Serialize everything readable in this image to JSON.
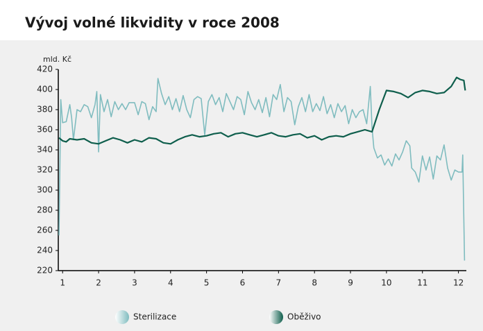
{
  "chart_data": {
    "type": "line",
    "title": "Vývoj volné likvidity v roce 2008",
    "y_label": "mld. Kč",
    "xlim": [
      0.88,
      12.22
    ],
    "xticks": [
      1,
      2,
      3,
      4,
      5,
      6,
      7,
      8,
      9,
      10,
      11,
      12
    ],
    "ylim": [
      220,
      420
    ],
    "yticks": [
      220,
      240,
      260,
      280,
      300,
      320,
      340,
      360,
      380,
      400,
      420
    ],
    "legend": "bottom",
    "series": [
      {
        "name": "Sterilizace",
        "color": "#7fbcbf",
        "x": [
          0.9,
          0.95,
          1.0,
          1.1,
          1.2,
          1.25,
          1.3,
          1.4,
          1.5,
          1.6,
          1.7,
          1.8,
          1.9,
          1.95,
          2.0,
          2.05,
          2.15,
          2.25,
          2.35,
          2.45,
          2.55,
          2.65,
          2.75,
          2.85,
          3.0,
          3.1,
          3.2,
          3.3,
          3.4,
          3.5,
          3.6,
          3.65,
          3.75,
          3.85,
          3.95,
          4.05,
          4.15,
          4.25,
          4.35,
          4.45,
          4.55,
          4.65,
          4.75,
          4.85,
          4.95,
          5.05,
          5.15,
          5.25,
          5.35,
          5.45,
          5.55,
          5.65,
          5.75,
          5.85,
          5.95,
          6.05,
          6.15,
          6.25,
          6.35,
          6.45,
          6.55,
          6.65,
          6.75,
          6.85,
          6.95,
          7.05,
          7.15,
          7.25,
          7.35,
          7.45,
          7.55,
          7.65,
          7.75,
          7.85,
          7.95,
          8.05,
          8.15,
          8.25,
          8.35,
          8.45,
          8.55,
          8.65,
          8.75,
          8.85,
          8.95,
          9.05,
          9.15,
          9.25,
          9.35,
          9.45,
          9.55,
          9.6,
          9.65,
          9.75,
          9.85,
          9.95,
          10.05,
          10.15,
          10.25,
          10.35,
          10.45,
          10.55,
          10.65,
          10.7,
          10.8,
          10.9,
          11.0,
          11.1,
          11.2,
          11.3,
          11.4,
          11.5,
          11.6,
          11.7,
          11.8,
          11.9,
          12.0,
          12.1,
          12.12,
          12.17
        ],
        "values": [
          255,
          390,
          367,
          368,
          385,
          372,
          350,
          380,
          378,
          385,
          383,
          372,
          385,
          398,
          338,
          395,
          378,
          390,
          373,
          388,
          380,
          386,
          380,
          387,
          387,
          375,
          388,
          386,
          370,
          383,
          378,
          411,
          396,
          385,
          393,
          380,
          391,
          378,
          394,
          380,
          372,
          390,
          393,
          391,
          355,
          388,
          395,
          385,
          392,
          378,
          396,
          388,
          380,
          393,
          390,
          375,
          398,
          387,
          380,
          390,
          377,
          392,
          373,
          395,
          390,
          405,
          378,
          392,
          388,
          365,
          383,
          392,
          378,
          395,
          378,
          386,
          379,
          393,
          376,
          385,
          372,
          386,
          378,
          384,
          366,
          380,
          372,
          378,
          380,
          366,
          403,
          362,
          342,
          332,
          335,
          325,
          331,
          324,
          336,
          330,
          338,
          349,
          344,
          322,
          318,
          308,
          334,
          320,
          333,
          311,
          334,
          330,
          345,
          322,
          310,
          320,
          318,
          318,
          335,
          230
        ]
      },
      {
        "name": "Oběživo",
        "color": "#0e5e4c",
        "x": [
          0.9,
          1.0,
          1.1,
          1.2,
          1.4,
          1.6,
          1.8,
          2.0,
          2.2,
          2.4,
          2.6,
          2.8,
          3.0,
          3.2,
          3.4,
          3.6,
          3.8,
          4.0,
          4.2,
          4.4,
          4.6,
          4.8,
          5.0,
          5.2,
          5.4,
          5.6,
          5.8,
          6.0,
          6.2,
          6.4,
          6.6,
          6.8,
          7.0,
          7.2,
          7.4,
          7.6,
          7.8,
          8.0,
          8.2,
          8.4,
          8.6,
          8.8,
          9.0,
          9.2,
          9.4,
          9.6,
          9.8,
          10.0,
          10.2,
          10.4,
          10.6,
          10.8,
          11.0,
          11.2,
          11.4,
          11.6,
          11.8,
          11.95,
          12.05,
          12.15,
          12.19
        ],
        "values": [
          352,
          349,
          348,
          351,
          350,
          351,
          347,
          346,
          349,
          352,
          350,
          347,
          350,
          348,
          352,
          351,
          347,
          346,
          350,
          353,
          355,
          353,
          354,
          356,
          357,
          353,
          356,
          357,
          355,
          353,
          355,
          357,
          354,
          353,
          355,
          356,
          352,
          354,
          350,
          353,
          354,
          353,
          356,
          358,
          360,
          358,
          380,
          399,
          398,
          396,
          392,
          397,
          399,
          398,
          396,
          397,
          403,
          412,
          410,
          409,
          399
        ]
      }
    ]
  }
}
